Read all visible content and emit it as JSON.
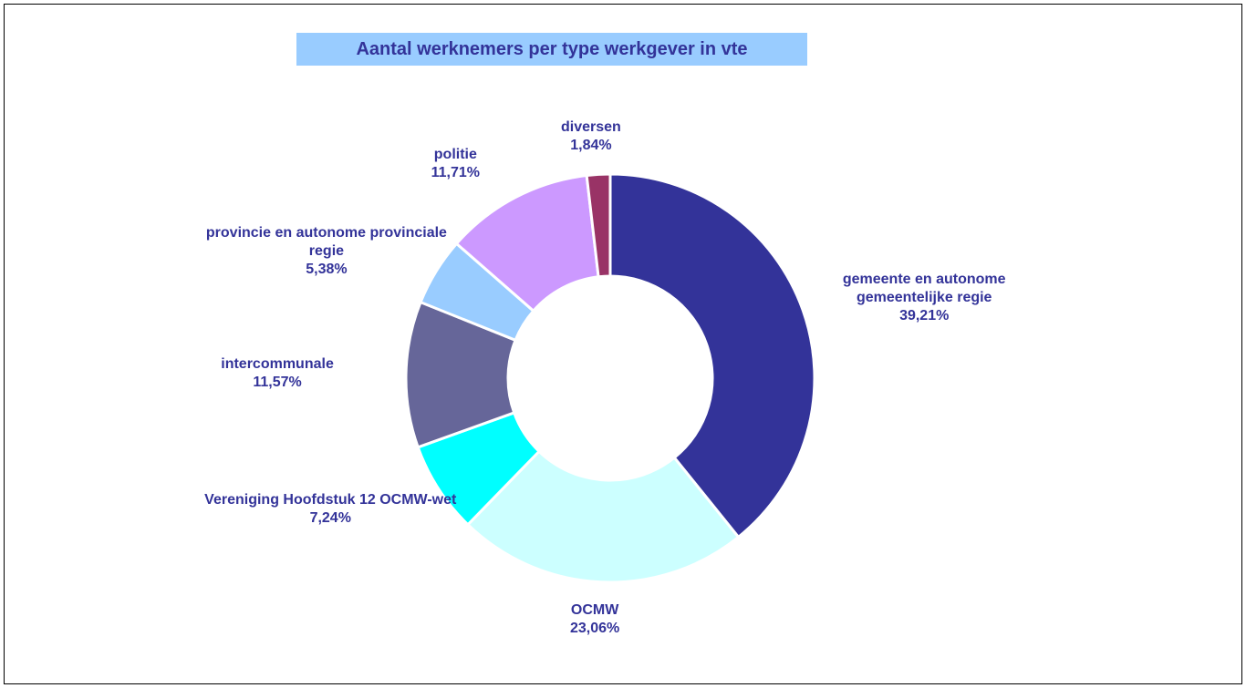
{
  "chart_data": {
    "type": "pie",
    "title": "Aantal werknemers per type werkgever in vte",
    "categories": [
      "gemeente en autonome gemeentelijke regie",
      "OCMW",
      "Vereniging Hoofdstuk 12 OCMW-wet",
      "intercommunale",
      "provincie en autonome provinciale regie",
      "politie",
      "diversen"
    ],
    "values": [
      39.21,
      23.06,
      7.24,
      11.57,
      5.38,
      11.71,
      1.84
    ],
    "value_labels": [
      "39,21%",
      "23,06%",
      "7,24%",
      "11,57%",
      "5,38%",
      "11,71%",
      "1,84%"
    ],
    "colors": [
      "#333399",
      "#ccffff",
      "#00ffff",
      "#666699",
      "#99ccff",
      "#cc99ff",
      "#993366"
    ],
    "hole": true
  }
}
